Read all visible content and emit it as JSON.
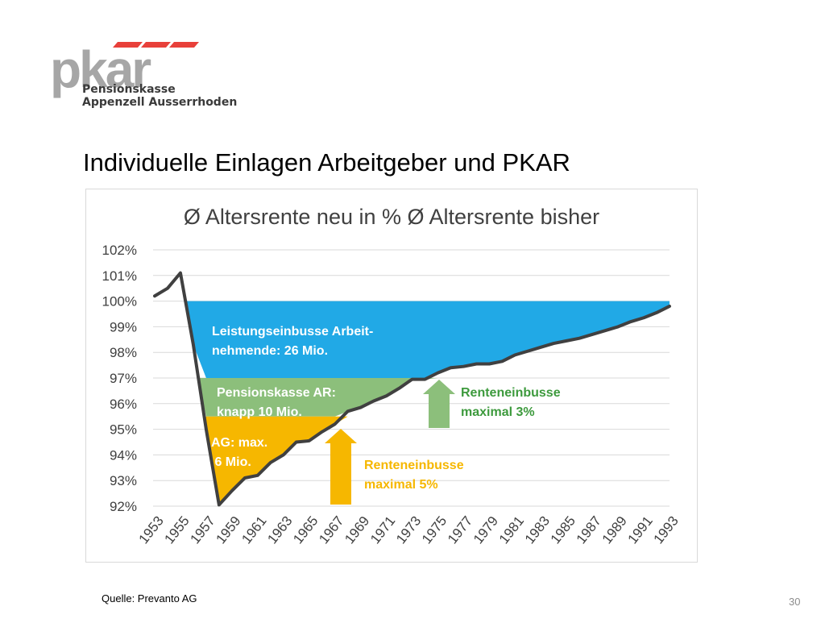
{
  "logo": {
    "wordmark": "pkar",
    "line1": "Pensionskasse",
    "line2": "Appenzell Ausserrhoden",
    "colors": {
      "gray": "#a6a6a6",
      "red": "#e8403a",
      "text": "#3a3a3a"
    }
  },
  "slide": {
    "title": "Individuelle Einlagen Arbeitgeber und PKAR",
    "source": "Quelle: Prevanto AG",
    "page_number": "30"
  },
  "chart_data": {
    "type": "line",
    "title": "Ø Altersrente neu in % Ø Altersrente bisher",
    "ylim": [
      92,
      102
    ],
    "y_ticks": [
      "92%",
      "93%",
      "94%",
      "95%",
      "96%",
      "97%",
      "98%",
      "99%",
      "100%",
      "101%",
      "102%"
    ],
    "x": [
      1953,
      1954,
      1955,
      1956,
      1957,
      1958,
      1959,
      1960,
      1961,
      1962,
      1963,
      1964,
      1965,
      1966,
      1967,
      1968,
      1969,
      1970,
      1971,
      1972,
      1973,
      1974,
      1975,
      1976,
      1977,
      1978,
      1979,
      1980,
      1981,
      1982,
      1983,
      1984,
      1985,
      1986,
      1987,
      1988,
      1989,
      1990,
      1991,
      1992,
      1993
    ],
    "x_tick_labels": [
      "1953",
      "1955",
      "1957",
      "1959",
      "1961",
      "1963",
      "1965",
      "1967",
      "1969",
      "1971",
      "1973",
      "1975",
      "1977",
      "1979",
      "1981",
      "1983",
      "1985",
      "1987",
      "1989",
      "1991",
      "1993"
    ],
    "series": [
      {
        "values": [
          100.2,
          100.5,
          101.1,
          98.3,
          95.0,
          92.05,
          92.6,
          93.1,
          93.2,
          93.7,
          94.0,
          94.5,
          94.55,
          94.9,
          95.2,
          95.7,
          95.85,
          96.1,
          96.3,
          96.6,
          96.95,
          96.95,
          97.2,
          97.4,
          97.45,
          97.55,
          97.55,
          97.65,
          97.9,
          98.05,
          98.2,
          98.35,
          98.45,
          98.55,
          98.7,
          98.85,
          99.0,
          99.2,
          99.35,
          99.55,
          99.8
        ],
        "color": "#404040"
      }
    ],
    "areas": [
      {
        "label": "Leistungseinbusse Arbeit-\nnehmende:  26 Mio.",
        "color": "#21a9e6",
        "text_color": "#ffffff"
      },
      {
        "label": "Pensionskasse AR:\nknapp 10 Mio.",
        "color": "#8cbf7b",
        "text_color": "#ffffff"
      },
      {
        "label": "AG: max.\n 6 Mio.",
        "color": "#f6b700",
        "text_color": "#ffffff"
      }
    ],
    "annotations": [
      {
        "text": "Renteneinbusse\nmaximal  3%",
        "color": "#3d9a3d",
        "arrow_color": "#8cbf7b"
      },
      {
        "text": "Renteneinbusse\nmaximal  5%",
        "color": "#f6b700",
        "arrow_color": "#f6b700"
      }
    ],
    "grid": true
  }
}
